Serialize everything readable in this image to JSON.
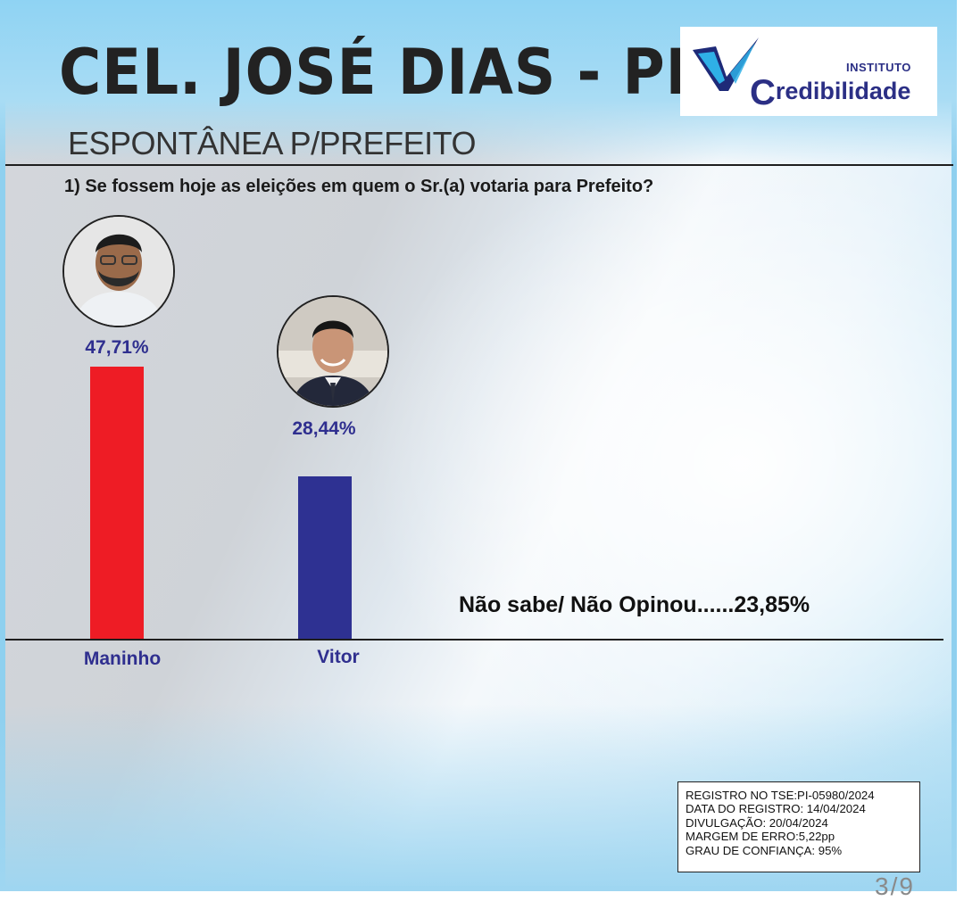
{
  "header": {
    "title": "CEL. JOSÉ DIAS - PI",
    "subtitle": "ESPONTÂNEA P/PREFEITO",
    "question": "1) Se fossem hoje as eleições em quem o Sr.(a) votaria para Prefeito?"
  },
  "logo": {
    "small_text": "INSTITUTO",
    "big_first": "C",
    "big_rest": "redibilidade",
    "colors": {
      "check_dark": "#1e2a78",
      "check_light": "#2fb0e6"
    }
  },
  "chart_data": {
    "type": "bar",
    "categories": [
      "Maninho",
      "Vitor"
    ],
    "values": [
      47.71,
      28.44
    ],
    "value_labels": [
      "47,71%",
      "28,44%"
    ],
    "colors": [
      "#ee1c25",
      "#2e3192"
    ],
    "ylim": [
      0,
      50
    ],
    "undecided_label": "Não sabe/ Não Opinou......23,85%"
  },
  "info_box": {
    "lines": [
      "REGISTRO NO TSE:PI-05980/2024",
      "DATA DO REGISTRO: 14/04/2024",
      "DIVULGAÇÃO: 20/04/2024",
      "MARGEM DE ERRO:5,22pp",
      "GRAU DE CONFIANÇA: 95%"
    ]
  },
  "page_number": "3/9"
}
